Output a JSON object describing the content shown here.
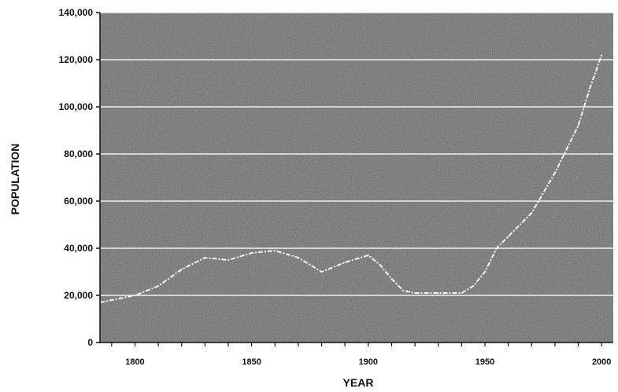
{
  "chart_data": {
    "type": "line",
    "title": "",
    "xlabel": "YEAR",
    "ylabel": "POPULATION",
    "xlim": [
      1785,
      2005
    ],
    "ylim": [
      0,
      140000
    ],
    "x_ticks": [
      1800,
      1850,
      1900,
      1950,
      2000
    ],
    "x_tick_labels": [
      "1800",
      "1850",
      "1900",
      "1950",
      "2000"
    ],
    "y_ticks": [
      0,
      20000,
      40000,
      60000,
      80000,
      100000,
      120000,
      140000
    ],
    "y_tick_labels": [
      "0",
      "20,000",
      "40,000",
      "60,000",
      "80,000",
      "100,000",
      "120,000",
      "140,000"
    ],
    "grid": true,
    "legend": "none",
    "series": [
      {
        "x": [
          1785,
          1790,
          1800,
          1810,
          1820,
          1830,
          1840,
          1850,
          1860,
          1870,
          1875,
          1880,
          1890,
          1900,
          1905,
          1910,
          1915,
          1920,
          1930,
          1940,
          1945,
          1950,
          1955,
          1960,
          1970,
          1980,
          1990,
          1995,
          2000
        ],
        "y": [
          17000,
          18000,
          20000,
          24000,
          31000,
          36000,
          35000,
          38000,
          39000,
          36000,
          33000,
          30000,
          34000,
          37000,
          33000,
          27000,
          22000,
          21000,
          21000,
          21000,
          24000,
          30000,
          40000,
          45000,
          55000,
          72000,
          92000,
          108000,
          122000
        ]
      }
    ]
  },
  "colors": {
    "plot_background": "#6a6a6a",
    "gridline": "#f2f2f2",
    "series_line": "#f4f4f4",
    "axis": "#111111"
  }
}
